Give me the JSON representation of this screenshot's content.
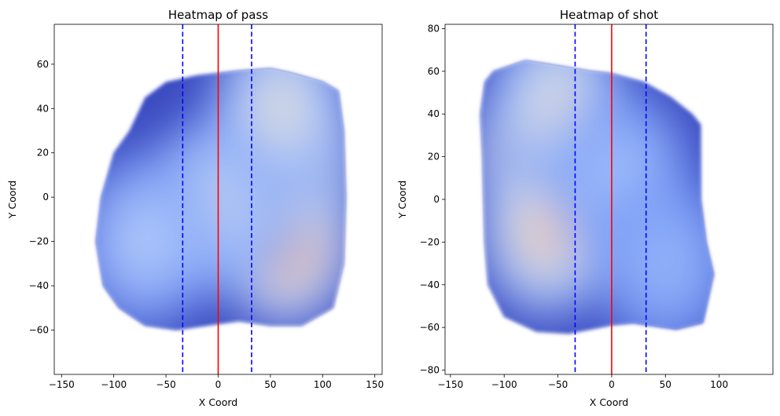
{
  "chart_data": [
    {
      "type": "heatmap",
      "title": "Heatmap of pass",
      "xlabel": "X Coord",
      "ylabel": "Y Coord",
      "xlim": [
        -157,
        157
      ],
      "ylim": [
        -80,
        78
      ],
      "xticks": [
        -150,
        -100,
        -50,
        0,
        50,
        100,
        150
      ],
      "yticks": [
        -60,
        -40,
        -20,
        0,
        20,
        40,
        60
      ],
      "x_tick_labels": [
        "−150",
        "−100",
        "−50",
        "0",
        "50",
        "100",
        "150"
      ],
      "y_tick_labels": [
        "−60",
        "−40",
        "−20",
        "0",
        "20",
        "40",
        "60"
      ],
      "vlines": [
        {
          "x": -34,
          "style": "dashed",
          "color": "#0000ff"
        },
        {
          "x": 0,
          "style": "solid",
          "color": "#ff0000"
        },
        {
          "x": 32,
          "style": "dashed",
          "color": "#0000ff"
        }
      ],
      "density_outline": [
        [
          -20,
          55
        ],
        [
          20,
          57
        ],
        [
          50,
          58
        ],
        [
          70,
          56
        ],
        [
          100,
          52
        ],
        [
          115,
          48
        ],
        [
          120,
          30
        ],
        [
          122,
          0
        ],
        [
          120,
          -30
        ],
        [
          110,
          -50
        ],
        [
          80,
          -58
        ],
        [
          50,
          -58
        ],
        [
          20,
          -56
        ],
        [
          -10,
          -58
        ],
        [
          -40,
          -60
        ],
        [
          -70,
          -58
        ],
        [
          -95,
          -50
        ],
        [
          -110,
          -40
        ],
        [
          -117,
          -20
        ],
        [
          -112,
          0
        ],
        [
          -100,
          20
        ],
        [
          -85,
          30
        ],
        [
          -70,
          45
        ],
        [
          -50,
          52
        ]
      ],
      "density_peaks": [
        {
          "x": 68,
          "y": 17,
          "weight": 1.0
        },
        {
          "x": 65,
          "y": -20,
          "weight": 0.8
        },
        {
          "x": 30,
          "y": 5,
          "weight": 0.55
        },
        {
          "x": 60,
          "y": 40,
          "weight": 0.45
        },
        {
          "x": -10,
          "y": -5,
          "weight": 0.35
        },
        {
          "x": -70,
          "y": -20,
          "weight": 0.25
        }
      ],
      "colormap": [
        "#3b4cc0",
        "#7396f5",
        "#b0cbfc",
        "#dcdddd",
        "#f6bfa6",
        "#ea7b60",
        "#b40426"
      ]
    },
    {
      "type": "heatmap",
      "title": "Heatmap of shot",
      "xlabel": "X Coord",
      "ylabel": "Y Coord",
      "xlim": [
        -155,
        150
      ],
      "ylim": [
        -82,
        82
      ],
      "xticks": [
        -150,
        -100,
        -50,
        0,
        50,
        100
      ],
      "yticks": [
        -80,
        -60,
        -40,
        -20,
        0,
        20,
        40,
        60,
        80
      ],
      "x_tick_labels": [
        "−150",
        "−100",
        "−50",
        "0",
        "50",
        "100"
      ],
      "y_tick_labels": [
        "−80",
        "−60",
        "−40",
        "−20",
        "0",
        "20",
        "40",
        "60",
        "80"
      ],
      "vlines": [
        {
          "x": -34,
          "style": "dashed",
          "color": "#0000ff"
        },
        {
          "x": 0,
          "style": "solid",
          "color": "#ff0000"
        },
        {
          "x": 32,
          "style": "dashed",
          "color": "#0000ff"
        }
      ],
      "density_outline": [
        [
          -110,
          60
        ],
        [
          -80,
          65
        ],
        [
          -55,
          63
        ],
        [
          -20,
          60
        ],
        [
          0,
          59
        ],
        [
          30,
          55
        ],
        [
          55,
          48
        ],
        [
          75,
          40
        ],
        [
          83,
          35
        ],
        [
          83,
          0
        ],
        [
          88,
          -20
        ],
        [
          95,
          -35
        ],
        [
          85,
          -58
        ],
        [
          60,
          -61
        ],
        [
          20,
          -58
        ],
        [
          0,
          -59
        ],
        [
          -40,
          -63
        ],
        [
          -70,
          -62
        ],
        [
          -100,
          -55
        ],
        [
          -115,
          -40
        ],
        [
          -118,
          -20
        ],
        [
          -120,
          20
        ],
        [
          -122,
          40
        ],
        [
          -118,
          55
        ]
      ],
      "density_peaks": [
        {
          "x": -65,
          "y": 22,
          "weight": 1.0
        },
        {
          "x": -60,
          "y": -15,
          "weight": 0.6
        },
        {
          "x": -50,
          "y": 45,
          "weight": 0.45
        },
        {
          "x": 10,
          "y": 10,
          "weight": 0.2
        },
        {
          "x": 50,
          "y": -30,
          "weight": 0.15
        }
      ],
      "colormap": [
        "#3b4cc0",
        "#7396f5",
        "#b0cbfc",
        "#dcdddd",
        "#f6bfa6",
        "#ea7b60",
        "#b40426"
      ]
    }
  ]
}
